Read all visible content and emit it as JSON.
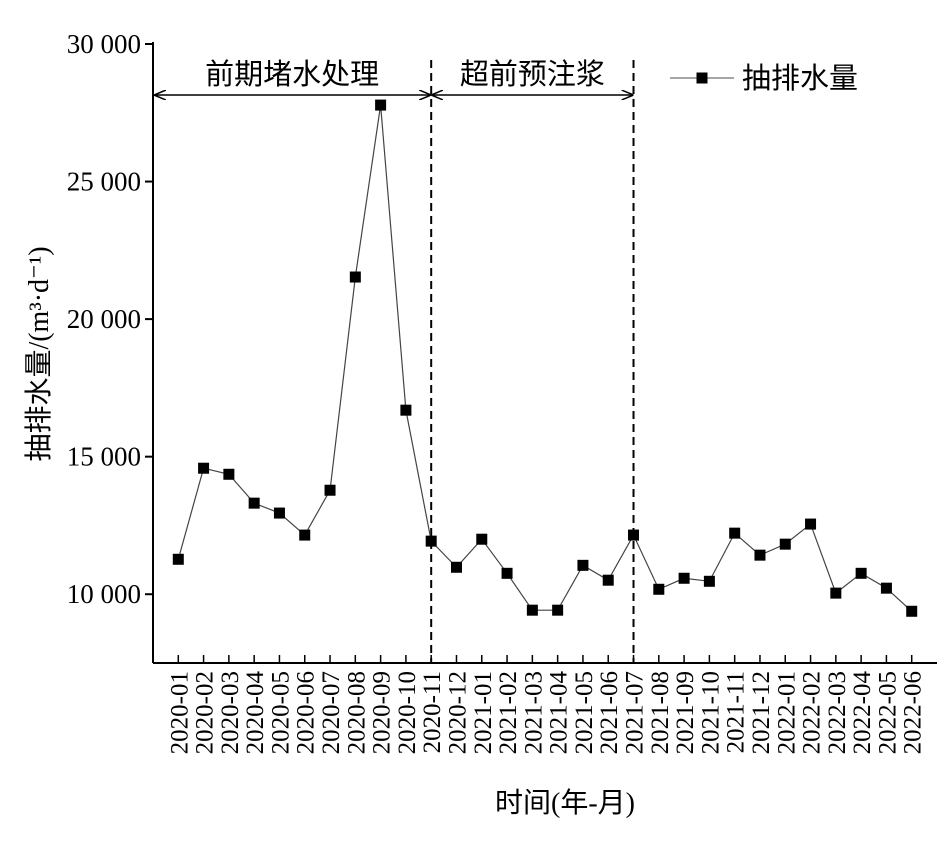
{
  "chart_data": {
    "type": "line",
    "x_label": "时间(年-月)",
    "y_label": "抽排水量/(m³·d⁻¹)",
    "categories": [
      "2020-01",
      "2020-02",
      "2020-03",
      "2020-04",
      "2020-05",
      "2020-06",
      "2020-07",
      "2020-08",
      "2020-09",
      "2020-10",
      "2020-11",
      "2020-12",
      "2021-01",
      "2021-02",
      "2021-03",
      "2021-04",
      "2021-05",
      "2021-06",
      "2021-07",
      "2021-08",
      "2021-09",
      "2021-10",
      "2021-11",
      "2021-12",
      "2022-01",
      "2022-02",
      "2022-03",
      "2022-04",
      "2022-05",
      "2022-06"
    ],
    "series": [
      {
        "name": "抽排水量",
        "color": "#000000",
        "values": [
          11270,
          14580,
          14360,
          13310,
          12950,
          12150,
          13780,
          21530,
          27780,
          16690,
          11930,
          10980,
          12000,
          10760,
          9420,
          9420,
          11050,
          10510,
          12150,
          10180,
          10580,
          10470,
          12220,
          11420,
          11820,
          12550,
          10040,
          10760,
          10220,
          9380
        ]
      }
    ],
    "ylim": [
      7500,
      30000
    ],
    "yticks": [
      {
        "value": 10000,
        "label": "10 000"
      },
      {
        "value": 15000,
        "label": "15 000"
      },
      {
        "value": 20000,
        "label": "20 000"
      },
      {
        "value": 25000,
        "label": "25 000"
      },
      {
        "value": 30000,
        "label": "30 000"
      }
    ],
    "annotations": [
      "前期堵水处理",
      "超前预注浆"
    ],
    "legend": "upper right"
  }
}
